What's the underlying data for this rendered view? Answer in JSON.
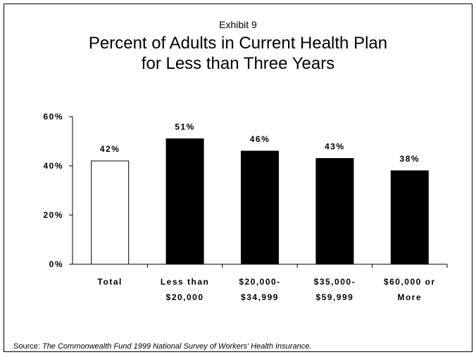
{
  "chart_data": {
    "type": "bar",
    "supertitle": "Exhibit 9",
    "title_lines": [
      "Percent of Adults in Current Health Plan",
      "for Less than Three Years"
    ],
    "categories": [
      [
        "Total"
      ],
      [
        "Less than",
        "$20,000"
      ],
      [
        "$20,000-",
        "$34,999"
      ],
      [
        "$35,000-",
        "$59,999"
      ],
      [
        "$60,000 or",
        "More"
      ]
    ],
    "values": [
      42,
      51,
      46,
      43,
      38
    ],
    "data_labels": [
      "42%",
      "51%",
      "46%",
      "43%",
      "38%"
    ],
    "bar_colors": [
      "#ffffff",
      "#000000",
      "#000000",
      "#000000",
      "#000000"
    ],
    "ylim": [
      0,
      60
    ],
    "yticks": [
      0,
      20,
      40,
      60
    ],
    "ytick_labels": [
      "0%",
      "20%",
      "40%",
      "60%"
    ],
    "grid": false,
    "legend": "none"
  },
  "source": {
    "prefix": "Source: ",
    "text": "The Commonwealth Fund 1999 National Survey of Workers' Health Insurance."
  }
}
